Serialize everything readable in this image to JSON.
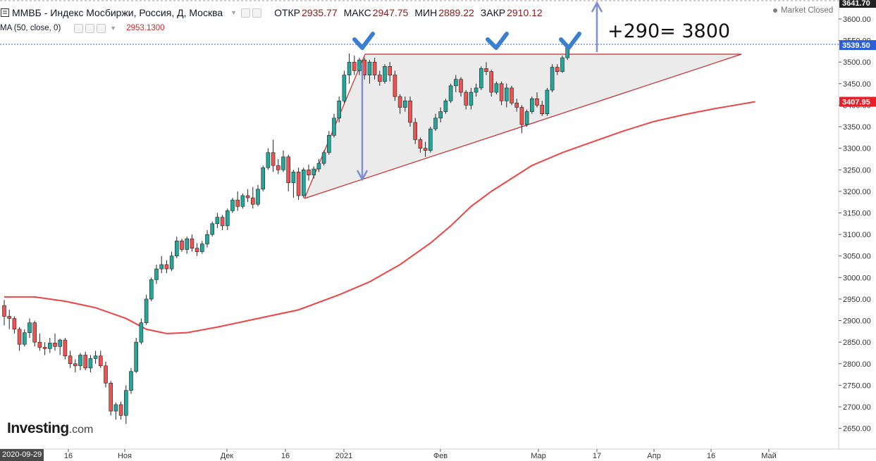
{
  "header": {
    "title": "ММВБ - Индекс Мосбиржи, Россия, Д, Москва",
    "ohlc": [
      {
        "label": "ОТКР",
        "value": "2935.77"
      },
      {
        "label": "МАКС",
        "value": "2947.75"
      },
      {
        "label": "МИН",
        "value": "2889.22"
      },
      {
        "label": "ЗАКР",
        "value": "2910.12"
      }
    ],
    "ma_label": "MA (50, close, 0)",
    "ma_value": "2953.1300",
    "market_status": "Market Closed"
  },
  "branding": {
    "logo_name": "Investing",
    "logo_domain": ".com"
  },
  "annotation_text": "+290= 3800",
  "colors": {
    "up": "#26a69a",
    "down": "#ef5350",
    "ma": "#ef4444",
    "trend": "#cc2a2a",
    "arrow": "#7e8fd6",
    "check": "#3a7fd0",
    "price_badge": "#2a60d8",
    "ma_badge": "#e5202b"
  },
  "chart_data": {
    "type": "candlestick",
    "title": "ММВБ - Индекс Мосбиржи, Россия, Д, Москва",
    "y_range": [
      2620,
      3650
    ],
    "y_ticks": [
      3600,
      3550,
      3500,
      3450,
      3400,
      3350,
      3300,
      3250,
      3200,
      3150,
      3100,
      3050,
      3000,
      2950,
      2900,
      2850,
      2800,
      2750,
      2700,
      2650
    ],
    "x_labels": [
      "2020-09-29",
      "16",
      "Ноя",
      "Дек",
      "16",
      "2021",
      "Фев",
      "Мар",
      "17",
      "Апр",
      "16",
      "Май"
    ],
    "price_badges": [
      {
        "label": "3641.70",
        "value": 3641.7,
        "role": "top"
      },
      {
        "label": "3539.50",
        "value": 3539.5,
        "role": "last_price"
      },
      {
        "label": "3407.95",
        "value": 3407.95,
        "role": "ma"
      }
    ],
    "candles": [
      [
        2935,
        2948,
        2889,
        2910
      ],
      [
        2910,
        2925,
        2880,
        2905
      ],
      [
        2905,
        2910,
        2870,
        2880
      ],
      [
        2880,
        2885,
        2830,
        2845
      ],
      [
        2845,
        2880,
        2840,
        2872
      ],
      [
        2872,
        2905,
        2860,
        2895
      ],
      [
        2895,
        2900,
        2840,
        2850
      ],
      [
        2850,
        2870,
        2830,
        2838
      ],
      [
        2838,
        2850,
        2820,
        2835
      ],
      [
        2835,
        2860,
        2825,
        2848
      ],
      [
        2848,
        2870,
        2830,
        2840
      ],
      [
        2840,
        2858,
        2820,
        2855
      ],
      [
        2855,
        2860,
        2810,
        2818
      ],
      [
        2818,
        2830,
        2790,
        2800
      ],
      [
        2800,
        2810,
        2780,
        2795
      ],
      [
        2795,
        2825,
        2785,
        2820
      ],
      [
        2820,
        2828,
        2785,
        2790
      ],
      [
        2790,
        2820,
        2780,
        2812
      ],
      [
        2812,
        2830,
        2800,
        2818
      ],
      [
        2818,
        2830,
        2790,
        2795
      ],
      [
        2795,
        2805,
        2745,
        2755
      ],
      [
        2755,
        2760,
        2680,
        2690
      ],
      [
        2690,
        2710,
        2670,
        2705
      ],
      [
        2705,
        2712,
        2670,
        2680
      ],
      [
        2680,
        2750,
        2660,
        2738
      ],
      [
        2738,
        2790,
        2730,
        2782
      ],
      [
        2782,
        2860,
        2778,
        2850
      ],
      [
        2850,
        2905,
        2845,
        2895
      ],
      [
        2895,
        2960,
        2890,
        2950
      ],
      [
        2950,
        3000,
        2945,
        2995
      ],
      [
        2995,
        3030,
        2985,
        3020
      ],
      [
        3020,
        3050,
        3010,
        3030
      ],
      [
        3030,
        3040,
        3010,
        3020
      ],
      [
        3020,
        3060,
        3015,
        3050
      ],
      [
        3050,
        3095,
        3045,
        3085
      ],
      [
        3085,
        3090,
        3060,
        3065
      ],
      [
        3065,
        3095,
        3055,
        3090
      ],
      [
        3090,
        3100,
        3060,
        3068
      ],
      [
        3068,
        3080,
        3050,
        3060
      ],
      [
        3060,
        3085,
        3055,
        3078
      ],
      [
        3078,
        3110,
        3070,
        3100
      ],
      [
        3100,
        3130,
        3095,
        3125
      ],
      [
        3125,
        3150,
        3115,
        3140
      ],
      [
        3140,
        3145,
        3110,
        3120
      ],
      [
        3120,
        3160,
        3110,
        3155
      ],
      [
        3155,
        3185,
        3150,
        3180
      ],
      [
        3180,
        3200,
        3155,
        3165
      ],
      [
        3165,
        3195,
        3160,
        3190
      ],
      [
        3190,
        3205,
        3175,
        3185
      ],
      [
        3185,
        3210,
        3160,
        3170
      ],
      [
        3170,
        3215,
        3165,
        3205
      ],
      [
        3205,
        3260,
        3200,
        3255
      ],
      [
        3255,
        3300,
        3250,
        3290
      ],
      [
        3290,
        3320,
        3245,
        3260
      ],
      [
        3260,
        3275,
        3240,
        3250
      ],
      [
        3250,
        3295,
        3245,
        3280
      ],
      [
        3280,
        3285,
        3200,
        3220
      ],
      [
        3220,
        3250,
        3185,
        3245
      ],
      [
        3245,
        3255,
        3180,
        3190
      ],
      [
        3190,
        3255,
        3185,
        3250
      ],
      [
        3250,
        3262,
        3225,
        3238
      ],
      [
        3238,
        3258,
        3230,
        3252
      ],
      [
        3252,
        3275,
        3245,
        3265
      ],
      [
        3265,
        3295,
        3260,
        3290
      ],
      [
        3290,
        3340,
        3285,
        3330
      ],
      [
        3330,
        3380,
        3325,
        3370
      ],
      [
        3370,
        3420,
        3360,
        3410
      ],
      [
        3410,
        3480,
        3405,
        3470
      ],
      [
        3470,
        3520,
        3450,
        3500
      ],
      [
        3500,
        3515,
        3470,
        3480
      ],
      [
        3480,
        3510,
        3470,
        3505
      ],
      [
        3505,
        3510,
        3460,
        3470
      ],
      [
        3470,
        3505,
        3450,
        3500
      ],
      [
        3500,
        3510,
        3460,
        3470
      ],
      [
        3470,
        3480,
        3445,
        3455
      ],
      [
        3455,
        3495,
        3450,
        3490
      ],
      [
        3490,
        3500,
        3455,
        3470
      ],
      [
        3470,
        3480,
        3410,
        3420
      ],
      [
        3420,
        3425,
        3380,
        3395
      ],
      [
        3395,
        3420,
        3385,
        3410
      ],
      [
        3410,
        3420,
        3350,
        3360
      ],
      [
        3360,
        3370,
        3310,
        3320
      ],
      [
        3320,
        3325,
        3290,
        3300
      ],
      [
        3300,
        3315,
        3280,
        3295
      ],
      [
        3295,
        3350,
        3290,
        3345
      ],
      [
        3345,
        3380,
        3340,
        3370
      ],
      [
        3370,
        3395,
        3360,
        3385
      ],
      [
        3385,
        3415,
        3380,
        3410
      ],
      [
        3410,
        3450,
        3405,
        3445
      ],
      [
        3445,
        3470,
        3430,
        3460
      ],
      [
        3460,
        3465,
        3420,
        3430
      ],
      [
        3430,
        3435,
        3390,
        3400
      ],
      [
        3400,
        3440,
        3390,
        3430
      ],
      [
        3430,
        3450,
        3420,
        3440
      ],
      [
        3440,
        3490,
        3435,
        3485
      ],
      [
        3485,
        3500,
        3470,
        3478
      ],
      [
        3478,
        3482,
        3420,
        3430
      ],
      [
        3430,
        3455,
        3425,
        3450
      ],
      [
        3450,
        3455,
        3400,
        3410
      ],
      [
        3410,
        3450,
        3395,
        3440
      ],
      [
        3440,
        3445,
        3400,
        3405
      ],
      [
        3405,
        3415,
        3385,
        3395
      ],
      [
        3395,
        3400,
        3335,
        3355
      ],
      [
        3355,
        3390,
        3350,
        3385
      ],
      [
        3385,
        3420,
        3380,
        3415
      ],
      [
        3415,
        3430,
        3395,
        3400
      ],
      [
        3400,
        3410,
        3375,
        3380
      ],
      [
        3380,
        3440,
        3375,
        3435
      ],
      [
        3435,
        3495,
        3430,
        3488
      ],
      [
        3488,
        3495,
        3470,
        3478
      ],
      [
        3478,
        3515,
        3475,
        3510
      ],
      [
        3510,
        3542,
        3505,
        3538
      ]
    ],
    "ma50": [
      [
        0,
        2955
      ],
      [
        6,
        2955
      ],
      [
        12,
        2945
      ],
      [
        18,
        2930
      ],
      [
        24,
        2905
      ],
      [
        28,
        2880
      ],
      [
        32,
        2870
      ],
      [
        36,
        2872
      ],
      [
        42,
        2885
      ],
      [
        50,
        2905
      ],
      [
        58,
        2925
      ],
      [
        66,
        2960
      ],
      [
        72,
        2990
      ],
      [
        78,
        3030
      ],
      [
        84,
        3080
      ],
      [
        88,
        3120
      ],
      [
        92,
        3165
      ],
      [
        96,
        3200
      ],
      [
        100,
        3230
      ],
      [
        104,
        3260
      ],
      [
        110,
        3290
      ],
      [
        116,
        3315
      ],
      [
        122,
        3340
      ],
      [
        128,
        3362
      ],
      [
        134,
        3378
      ],
      [
        140,
        3392
      ],
      [
        144,
        3400
      ],
      [
        148,
        3408
      ]
    ]
  }
}
